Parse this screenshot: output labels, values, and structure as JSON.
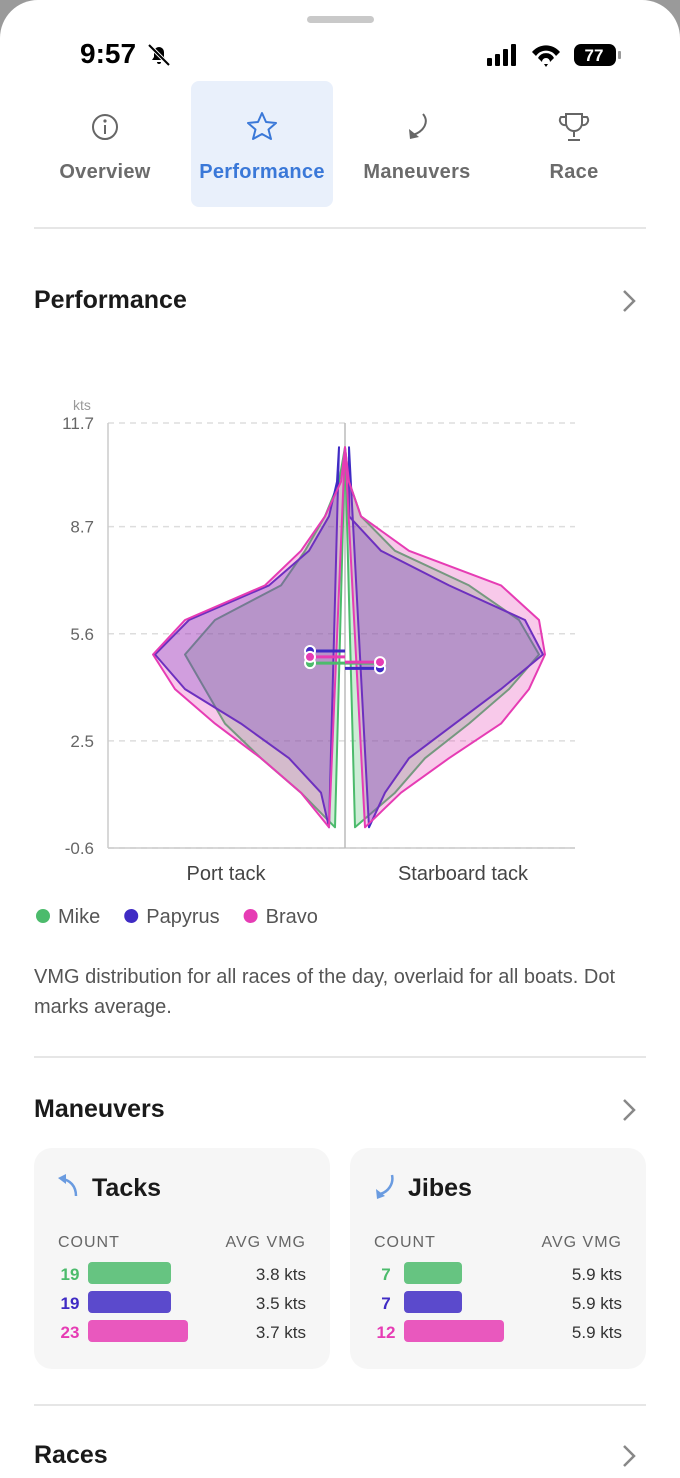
{
  "status_bar": {
    "time": "9:57",
    "battery": "77"
  },
  "tabs": [
    "Overview",
    "Performance",
    "Maneuvers",
    "Race"
  ],
  "performance": {
    "title": "Performance",
    "description": "VMG distribution for all races of the day, overlaid for all boats. Dot marks average."
  },
  "chart_data": {
    "type": "violin",
    "y_unit": "kts",
    "categories": [
      "Port tack",
      "Starboard tack"
    ],
    "ylim": [
      -0.6,
      11.7
    ],
    "yticks": [
      11.7,
      8.7,
      5.6,
      2.5,
      -0.6
    ],
    "grid": true,
    "levels": [
      0,
      1,
      2,
      3,
      4,
      5,
      6,
      7,
      8,
      9,
      10,
      11
    ],
    "series": [
      {
        "name": "Mike",
        "color": "#4cbb6c",
        "density": [
          [
            0.05,
            0.22,
            0.42,
            0.6,
            0.7,
            0.8,
            0.65,
            0.32,
            0.2,
            0.1,
            0.03,
            0
          ],
          [
            0.05,
            0.25,
            0.4,
            0.62,
            0.82,
            0.97,
            0.87,
            0.62,
            0.25,
            0.08,
            0.02,
            0
          ]
        ],
        "mean": [
          4.75,
          4.75
        ]
      },
      {
        "name": "Papyrus",
        "color": "#3f2bc4",
        "density": [
          [
            0.08,
            0.12,
            0.28,
            0.52,
            0.8,
            0.95,
            0.78,
            0.38,
            0.18,
            0.08,
            0.04,
            0.03
          ],
          [
            0.12,
            0.2,
            0.32,
            0.55,
            0.78,
            0.99,
            0.9,
            0.52,
            0.18,
            0.02,
            0.02,
            0.02
          ]
        ],
        "mean": [
          5.1,
          4.6
        ]
      },
      {
        "name": "Bravo",
        "color": "#e63cb4",
        "density": [
          [
            0.08,
            0.22,
            0.42,
            0.65,
            0.85,
            0.96,
            0.8,
            0.4,
            0.22,
            0.1,
            0.02,
            0
          ],
          [
            0.1,
            0.28,
            0.52,
            0.78,
            0.92,
            1.0,
            0.97,
            0.78,
            0.32,
            0.08,
            0.02,
            0
          ]
        ],
        "mean": [
          4.93,
          4.78
        ]
      }
    ]
  },
  "maneuvers": {
    "title": "Maneuvers",
    "cards": [
      {
        "title": "Tacks",
        "count_header": "COUNT",
        "vmg_header": "AVG VMG",
        "rows": [
          {
            "count": 19,
            "avg_vmg": "3.8 kts"
          },
          {
            "count": 19,
            "avg_vmg": "3.5 kts"
          },
          {
            "count": 23,
            "avg_vmg": "3.7 kts"
          }
        ]
      },
      {
        "title": "Jibes",
        "count_header": "COUNT",
        "vmg_header": "AVG VMG",
        "rows": [
          {
            "count": 7,
            "avg_vmg": "5.9 kts"
          },
          {
            "count": 7,
            "avg_vmg": "5.9 kts"
          },
          {
            "count": 12,
            "avg_vmg": "5.9 kts"
          }
        ]
      }
    ]
  },
  "races": {
    "title": "Races"
  }
}
